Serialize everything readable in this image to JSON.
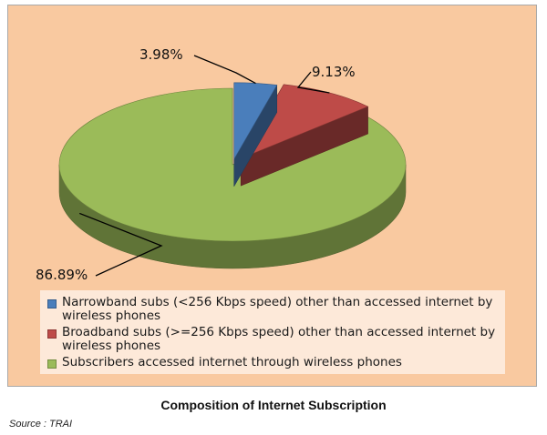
{
  "chart_data": {
    "type": "pie",
    "title": "Composition of Internet Subscription",
    "categories": [
      "Narrowband subs (<256 Kbps speed) other than accessed internet by wireless phones",
      "Broadband subs (>=256 Kbps speed) other than accessed internet by wireless phones",
      "Subscribers accessed internet through wireless phones"
    ],
    "values": [
      3.98,
      9.13,
      86.89
    ],
    "data_labels": [
      "3.98%",
      "9.13%",
      "86.89%"
    ],
    "colors": [
      "#4a7ebb",
      "#be4b48",
      "#9bbb59"
    ],
    "style": "3d-exploded",
    "legend_position": "bottom"
  },
  "legend": {
    "items": [
      {
        "label": "Narrowband subs (<256 Kbps speed) other than accessed internet by wireless phones",
        "color": "#4a7ebb"
      },
      {
        "label": "Broadband subs (>=256 Kbps speed) other than accessed internet by wireless phones",
        "color": "#be4b48"
      },
      {
        "label": "Subscribers accessed internet through wireless phones",
        "color": "#9bbb59"
      }
    ]
  },
  "caption": "Composition of Internet Subscription",
  "source": "Source : TRAI"
}
